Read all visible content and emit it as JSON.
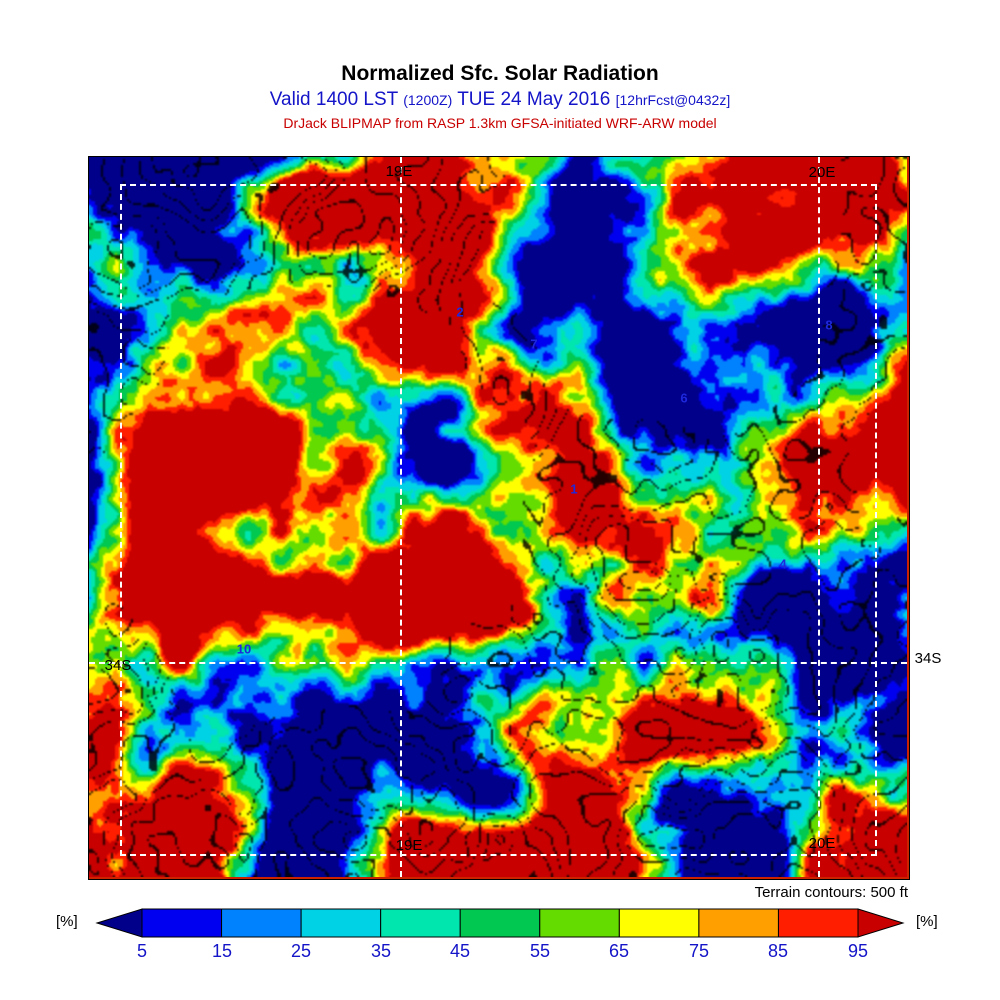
{
  "header": {
    "title": "Normalized Sfc. Solar Radiation",
    "valid_prefix": "Valid 1400 LST",
    "valid_z": "(1200Z)",
    "valid_date": "TUE 24 May 2016",
    "fcst_tag": "[12hrFcst@0432z]",
    "model_line": "DrJack BLIPMAP from RASP 1.3km GFSA-initiated WRF-ARW model"
  },
  "map": {
    "grid_labels": [
      {
        "text": "19E"
      },
      {
        "text": "20E"
      },
      {
        "text": "34S"
      },
      {
        "text": "34S"
      },
      {
        "text": "19E"
      },
      {
        "text": "20E"
      }
    ],
    "site_labels": [
      {
        "text": "2"
      },
      {
        "text": "7"
      },
      {
        "text": "8"
      },
      {
        "text": "6"
      },
      {
        "text": "1"
      },
      {
        "text": "4"
      },
      {
        "text": "10"
      }
    ],
    "terrain_note": "Terrain contours: 500 ft"
  },
  "colorbar": {
    "unit_left": "[%]",
    "unit_right": "[%]",
    "ticks": [
      "5",
      "15",
      "25",
      "35",
      "45",
      "55",
      "65",
      "75",
      "85",
      "95"
    ]
  },
  "chart_data": {
    "type": "heatmap",
    "title": "Normalized Sfc. Solar Radiation",
    "subtitle": "Valid 1400 LST (1200Z) TUE 24 May 2016 [12hrFcst@0432z]",
    "source": "DrJack BLIPMAP from RASP 1.3km GFSA-initiated WRF-ARW model",
    "units": "%",
    "value_range": [
      0,
      100
    ],
    "colorbar_ticks": [
      5,
      15,
      25,
      35,
      45,
      55,
      65,
      75,
      85,
      95
    ],
    "palette": [
      "#00008B",
      "#0000F0",
      "#0082FF",
      "#00D2E6",
      "#00E6AF",
      "#00C850",
      "#64DC00",
      "#FFFF00",
      "#FFA000",
      "#FF1E00",
      "#C80000"
    ],
    "overlay_contours": "Terrain contours: 500 ft",
    "graticule": {
      "meridians": [
        "19E",
        "20E"
      ],
      "parallels": [
        "34S"
      ]
    },
    "site_markers": [
      "1",
      "2",
      "4",
      "6",
      "7",
      "8",
      "10"
    ],
    "noise_seed": 20160524
  }
}
